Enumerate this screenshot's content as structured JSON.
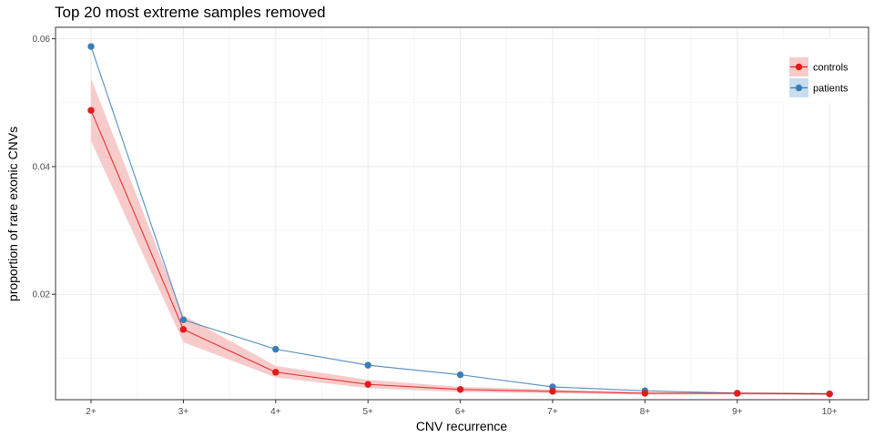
{
  "chart_data": {
    "type": "line",
    "title": "Top 20 most extreme samples removed",
    "xlabel": "CNV recurrence",
    "ylabel": "proportion of rare exonic CNVs",
    "categories": [
      "2+",
      "3+",
      "4+",
      "5+",
      "6+",
      "7+",
      "8+",
      "9+",
      "10+"
    ],
    "ylim": [
      0.0035,
      0.0618
    ],
    "yticks": [
      0.02,
      0.04,
      0.06
    ],
    "ytick_labels": [
      "0.02",
      "0.04",
      "0.06"
    ],
    "grid": true,
    "legend_position": "top-right",
    "series": [
      {
        "name": "controls",
        "color": "#e41a1c",
        "band_color": "#f8cbcb",
        "values": [
          0.0488,
          0.0145,
          0.0078,
          0.0059,
          0.0051,
          0.0048,
          0.0045,
          0.0045,
          0.0044
        ],
        "lower": [
          0.044,
          0.0125,
          0.007,
          0.0053,
          0.0047,
          0.0045,
          0.0043,
          0.0043,
          0.0042
        ],
        "upper": [
          0.0538,
          0.0167,
          0.0088,
          0.0066,
          0.0055,
          0.0051,
          0.0047,
          0.0047,
          0.0046
        ]
      },
      {
        "name": "patients",
        "color": "#377eb8",
        "band_color": "#c9ddee",
        "values": [
          0.0588,
          0.016,
          0.0114,
          0.0089,
          0.0074,
          0.0055,
          0.0049,
          0.0045,
          0.0044
        ]
      }
    ]
  }
}
